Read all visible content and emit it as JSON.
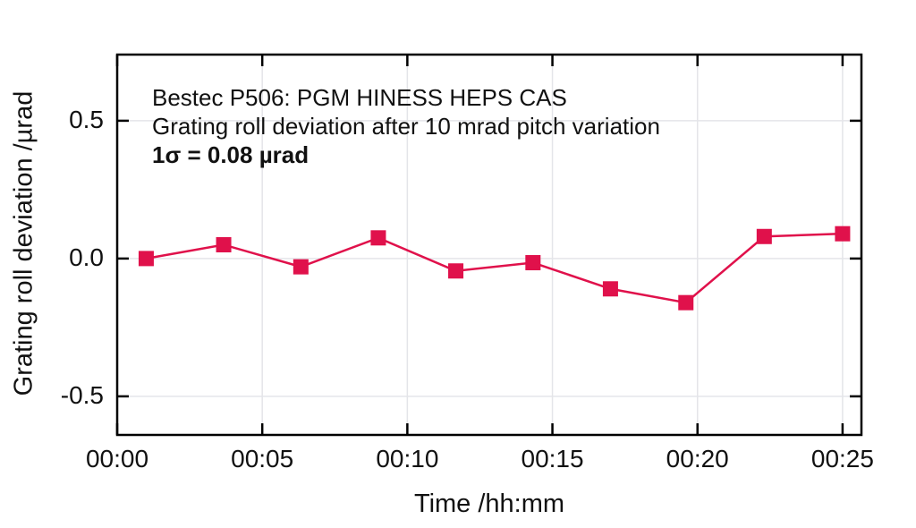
{
  "chart_data": {
    "type": "line",
    "xlabel": "Time /hh:mm",
    "ylabel": "Grating roll deviation /µrad",
    "annotations": {
      "line1": "Bestec P506: PGM HINESS HEPS CAS",
      "line2": "Grating roll deviation after 10 mrad pitch variation",
      "line3": "1σ = 0.08 µrad"
    },
    "x_unit": "minutes",
    "xlim": [
      0,
      25.65
    ],
    "ylim": [
      -0.64,
      0.74
    ],
    "grid": true,
    "x_ticks": {
      "values": [
        0,
        5,
        10,
        15,
        20,
        25
      ],
      "labels": [
        "00:00",
        "00:05",
        "00:10",
        "00:15",
        "00:20",
        "00:25"
      ]
    },
    "y_ticks": {
      "values": [
        0.5,
        0.0,
        -0.5
      ],
      "labels": [
        "0.5",
        "0.0",
        "-0.5"
      ]
    },
    "series": [
      {
        "name": "grating-roll-deviation",
        "color": "#e0114b",
        "marker": "square",
        "x": [
          1.0,
          3.67,
          6.33,
          9.0,
          11.67,
          14.33,
          17.0,
          19.6,
          22.3,
          25.0
        ],
        "values": [
          0.0,
          0.05,
          -0.03,
          0.075,
          -0.045,
          -0.015,
          -0.11,
          -0.16,
          0.08,
          0.09
        ]
      }
    ],
    "colors": {
      "axis": "#000000",
      "grid": "#e4e5e9",
      "text": "#111111",
      "background": "#ffffff"
    }
  }
}
